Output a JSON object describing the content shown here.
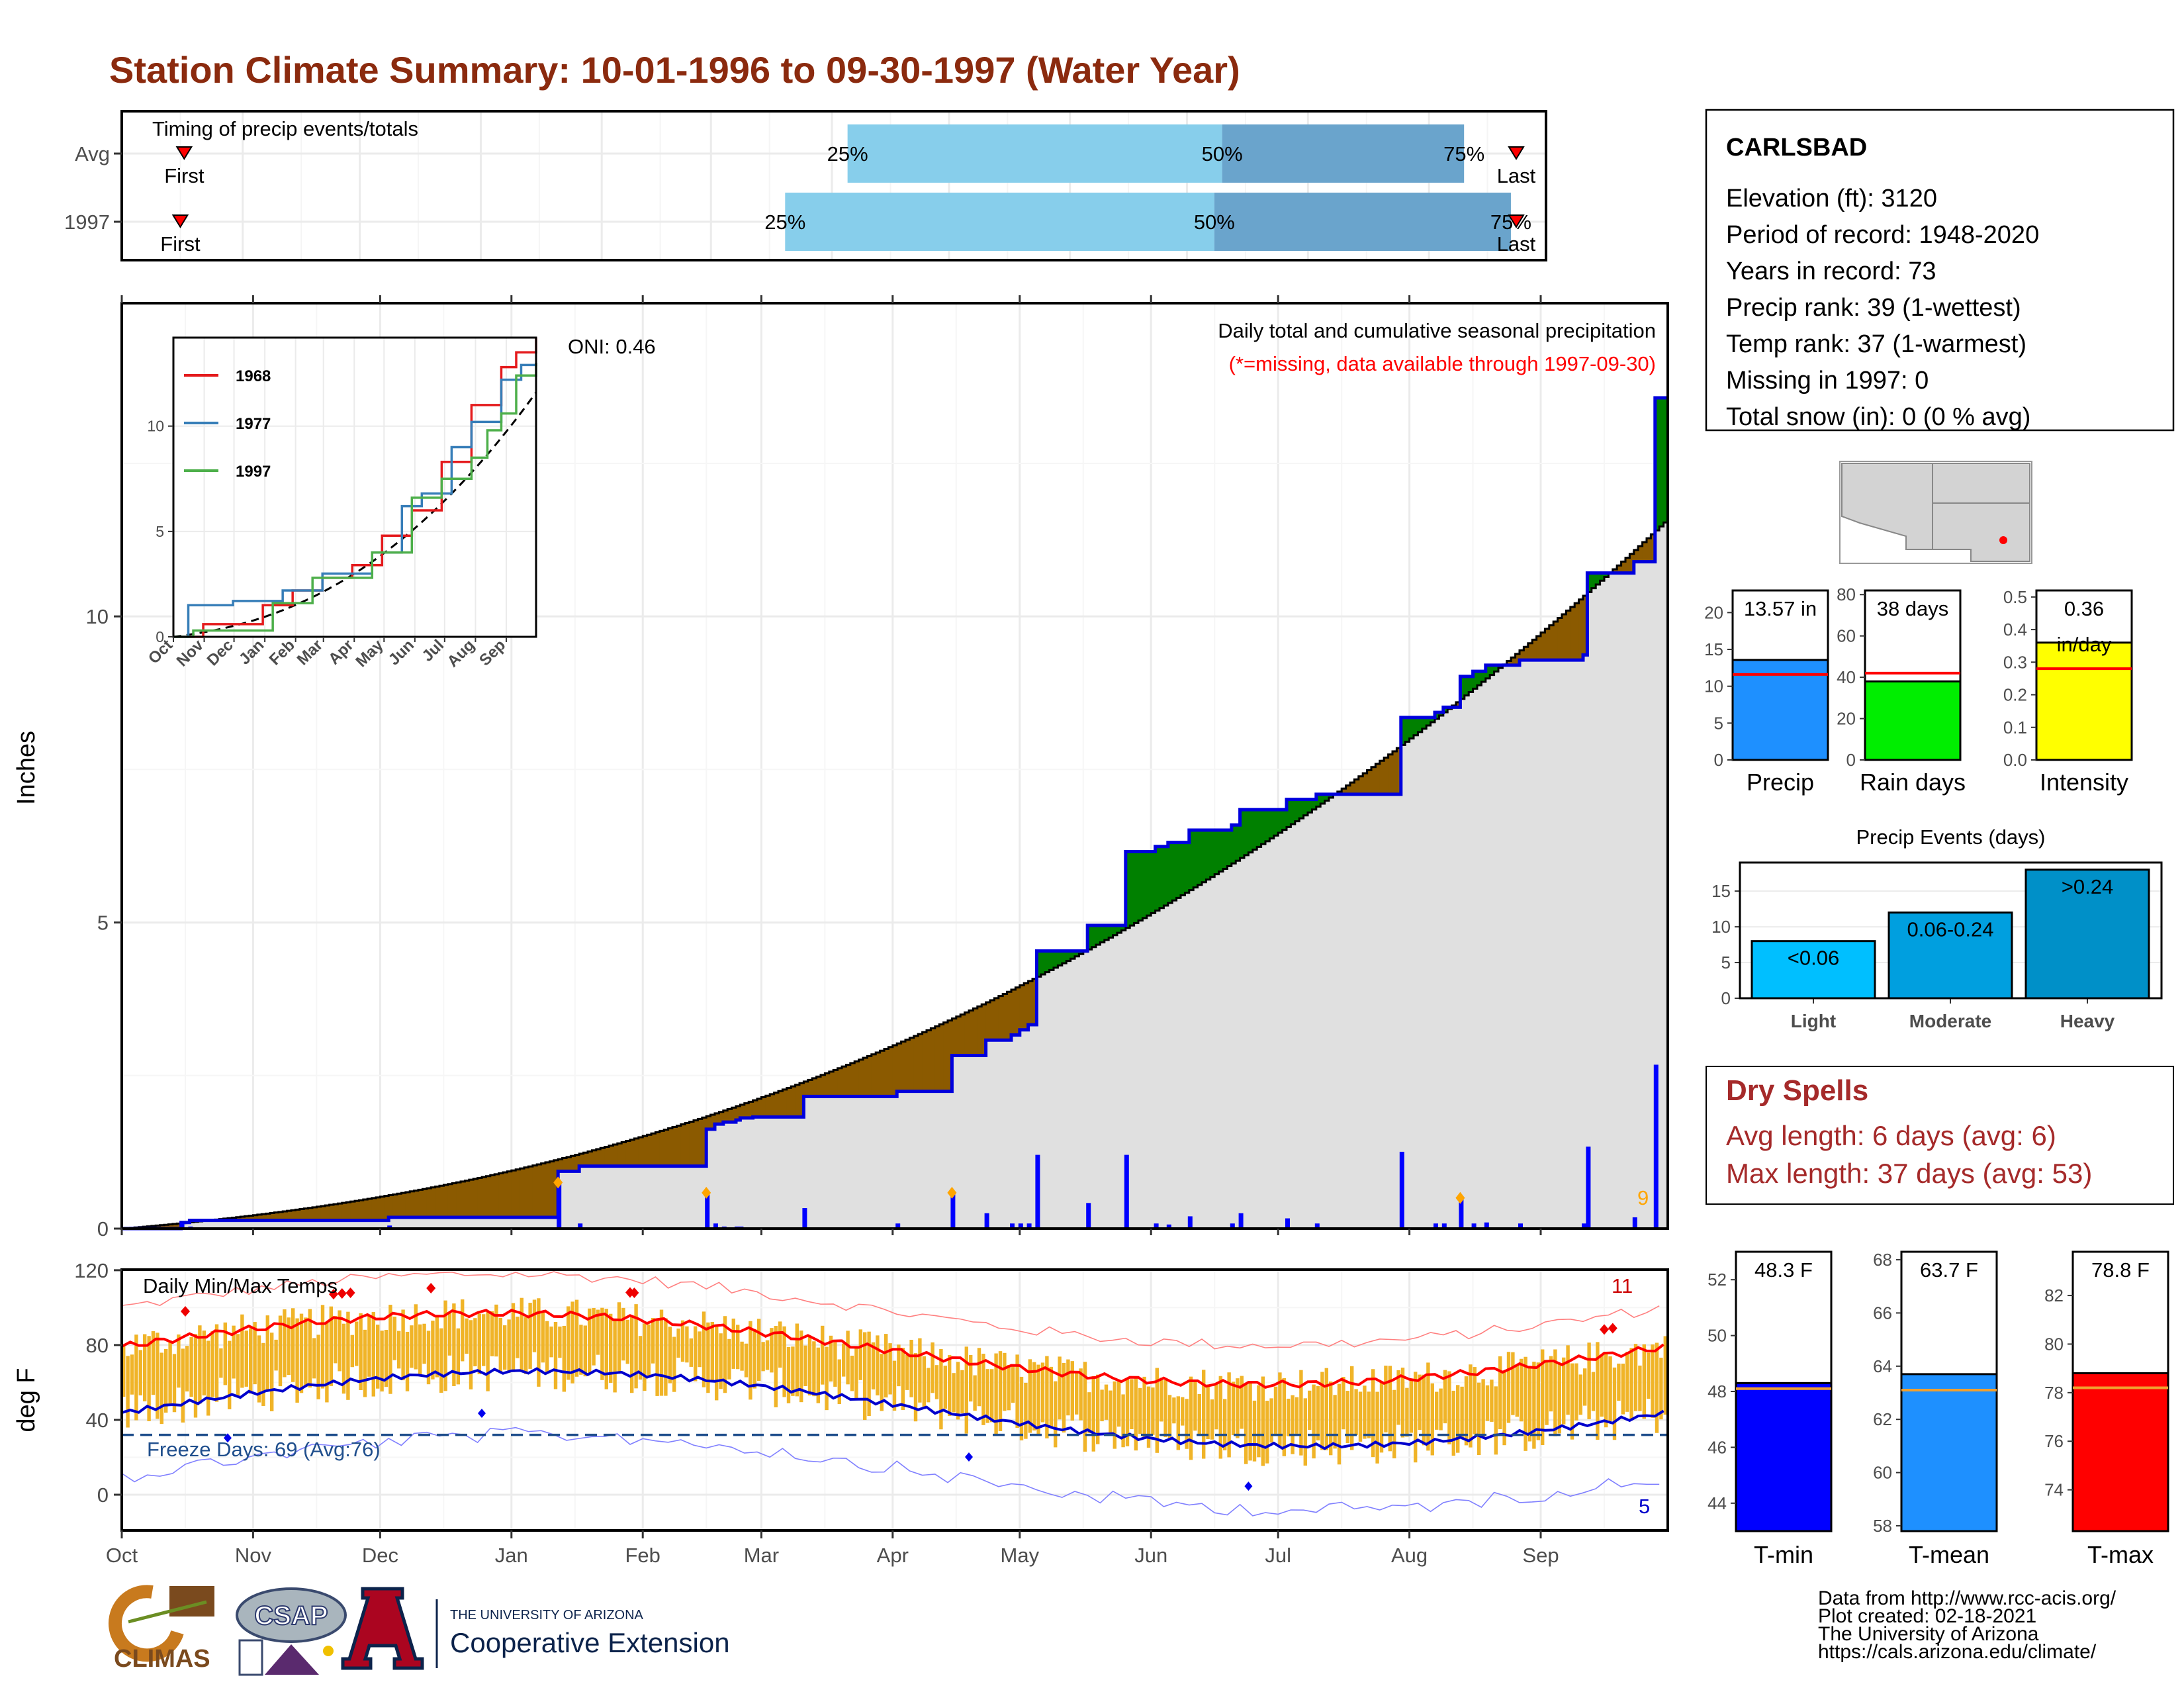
{
  "title": "Station Climate Summary: 10-01-1996 to 09-30-1997 (Water Year)",
  "colors": {
    "title": "#8b2a0e",
    "q_light": "#87ceeb",
    "q_dark": "#6aa4cc",
    "above": "#008000",
    "below": "#8b5a00",
    "avg_fill": "#e0e0e0",
    "cum_line": "#0000dd",
    "bar": "#0000ff",
    "orange": "#ffa500",
    "temp_bar": "#f0b428",
    "tmax": "#ff0000",
    "tmin": "#0000cc",
    "freeze": "#1f4e8c",
    "dryspell": "#a52a2a"
  },
  "months": [
    "Oct",
    "Nov",
    "Dec",
    "Jan",
    "Feb",
    "Mar",
    "Apr",
    "May",
    "Jun",
    "Jul",
    "Aug",
    "Sep"
  ],
  "timing": {
    "title": "Timing of precip events/totals",
    "rows": [
      {
        "label": "Avg",
        "first_label": "First",
        "last_label": "Last",
        "first": 16,
        "last": 365,
        "q25": 186,
        "q50": 282,
        "q75": 344,
        "p25": "25%",
        "p50": "50%",
        "p75": "75%"
      },
      {
        "label": "1997",
        "first_label": "First",
        "last_label": "Last",
        "first": 15,
        "last": 365,
        "q25": 170,
        "q50": 280,
        "q75": 356,
        "p25": "25%",
        "p50": "50%",
        "p75": "75%"
      }
    ]
  },
  "precip": {
    "ylabel": "Inches",
    "yticks": [
      "0",
      "5",
      "10"
    ],
    "ymax": 13.57,
    "title": "Daily total and cumulative seasonal precipitation",
    "subtitle": "(*=missing, data available through 1997-09-30)",
    "oni": "ONI: 0.46",
    "count_label": "9",
    "avg_end": 11.6
  },
  "inset": {
    "yticks": [
      "0",
      "5",
      "10"
    ],
    "series": [
      {
        "name": "1968",
        "color": "#e41a1c"
      },
      {
        "name": "1977",
        "color": "#377eb8"
      },
      {
        "name": "1997",
        "color": "#4daf4a"
      }
    ]
  },
  "temps": {
    "title": "Daily Min/Max Temps",
    "ylabel": "deg F",
    "yticks": [
      "0",
      "40",
      "80",
      "120"
    ],
    "freeze_label": "Freeze Days: 69 (Avg:76)",
    "hot_count": "11",
    "cold_count": "5",
    "freeze_line": 32
  },
  "station": {
    "name": "CARLSBAD",
    "lines": [
      "Elevation (ft): 3120",
      "Period of record: 1948-2020",
      "Years in record: 73",
      "Precip rank: 39 (1-wettest)",
      "Temp rank: 37 (1-warmest)",
      "Missing in 1997: 0",
      "Total snow (in): 0 (0 % avg)"
    ]
  },
  "mini_charts": [
    {
      "label": "Precip",
      "value_label": "13.57 in",
      "value": 13.57,
      "avg": 11.6,
      "max": 23,
      "ticks": [
        "0",
        "5",
        "10",
        "15",
        "20"
      ],
      "color": "#1e90ff"
    },
    {
      "label": "Rain days",
      "value_label": "38 days",
      "value": 38,
      "avg": 42,
      "max": 82,
      "ticks": [
        "0",
        "20",
        "40",
        "60",
        "80"
      ],
      "color": "#00ee00"
    },
    {
      "label": "Intensity",
      "value_label": "0.36",
      "value_label2": "in/day",
      "value": 0.36,
      "avg": 0.28,
      "max": 0.52,
      "ticks": [
        "0.0",
        "0.1",
        "0.2",
        "0.3",
        "0.4",
        "0.5"
      ],
      "color": "#ffff00"
    }
  ],
  "chart_data": {
    "type": "bar",
    "title": "Precip Events (days)",
    "categories": [
      "Light",
      "Moderate",
      "Heavy"
    ],
    "bar_labels": [
      "<0.06",
      "0.06-0.24",
      ">0.24"
    ],
    "values": [
      8,
      12,
      18
    ],
    "yticks": [
      "0",
      "5",
      "10",
      "15"
    ],
    "ylim": [
      0,
      19
    ]
  },
  "dry_spells": {
    "title": "Dry Spells",
    "avg": "Avg length: 6 days (avg: 6)",
    "max": "Max length: 37 days (avg: 53)"
  },
  "temp_bars": [
    {
      "label": "T-min",
      "value_label": "48.3 F",
      "value": 48.3,
      "avg": 48.1,
      "min": 43,
      "max": 53,
      "ticks": [
        "44",
        "46",
        "48",
        "50",
        "52"
      ],
      "color": "#0000ff"
    },
    {
      "label": "T-mean",
      "value_label": "63.7 F",
      "value": 63.7,
      "avg": 63.1,
      "min": 57.8,
      "max": 68.3,
      "ticks": [
        "58",
        "60",
        "62",
        "64",
        "66",
        "68"
      ],
      "color": "#1e90ff"
    },
    {
      "label": "T-max",
      "value_label": "78.8 F",
      "value": 78.8,
      "avg": 78.2,
      "min": 72.3,
      "max": 83.8,
      "ticks": [
        "74",
        "76",
        "78",
        "80",
        "82"
      ],
      "color": "#ff0000"
    }
  ],
  "footer": {
    "lines": [
      "Data from http://www.rcc-acis.org/",
      "Plot created: 02-18-2021",
      "The University of Arizona",
      "https://cals.arizona.edu/climate/"
    ],
    "climas": "CLIMAS",
    "csap": "CSAP",
    "ua_small": "THE UNIVERSITY OF ARIZONA",
    "ua_big": "Cooperative Extension"
  }
}
